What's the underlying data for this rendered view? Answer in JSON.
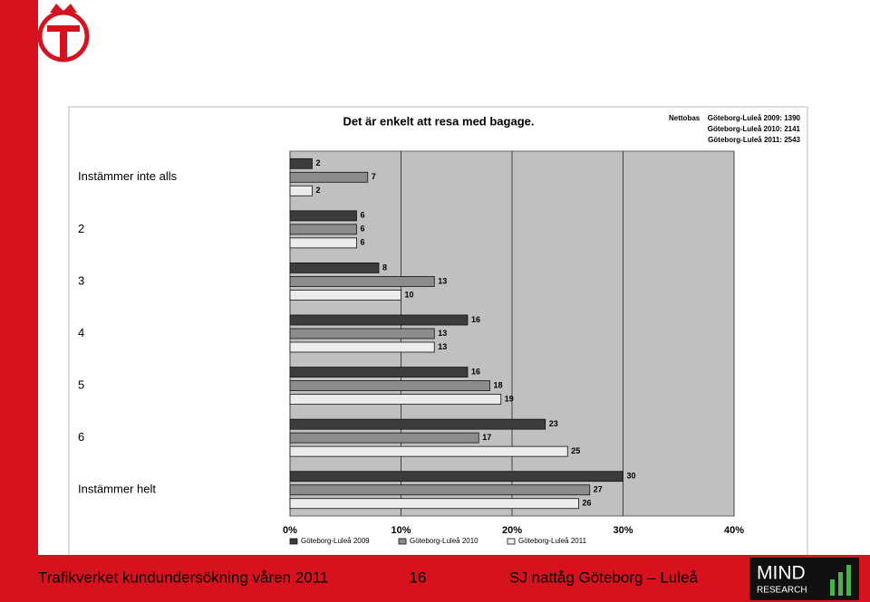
{
  "chart_data": {
    "type": "hbar",
    "title": "Det är enkelt att resa med bagage.",
    "base_label": "Nettobas",
    "base_lines": [
      "Göteborg-Luleå 2009: 1390",
      "Göteborg-Luleå 2010: 2141",
      "Göteborg-Luleå 2011: 2543"
    ],
    "categories": [
      "Instämmer inte alls",
      "2",
      "3",
      "4",
      "5",
      "6",
      "Instämmer helt"
    ],
    "series": [
      {
        "name": "Göteborg-Luleå 2009",
        "color": "#3c3c3c",
        "values": [
          2,
          6,
          8,
          16,
          16,
          23,
          30
        ]
      },
      {
        "name": "Göteborg-Luleå 2010",
        "color": "#8c8c8c",
        "values": [
          7,
          6,
          13,
          13,
          18,
          17,
          27
        ]
      },
      {
        "name": "Göteborg-Luleå 2011",
        "color": "#ececec",
        "values": [
          2,
          6,
          10,
          13,
          19,
          25,
          26
        ]
      }
    ],
    "xlim": [
      0,
      40
    ],
    "xticks": [
      {
        "value": 0,
        "label": "0%"
      },
      {
        "value": 10,
        "label": "10%"
      },
      {
        "value": 20,
        "label": "20%"
      },
      {
        "value": 30,
        "label": "30%"
      },
      {
        "value": 40,
        "label": "40%"
      }
    ],
    "grid": true,
    "legend": "bottom"
  },
  "footer": {
    "left": "Trafikverket kundundersökning våren 2011",
    "page": "16",
    "right": "SJ nattåg Göteborg – Luleå",
    "logo_top": "MIND",
    "logo_bottom": "RESEARCH"
  }
}
